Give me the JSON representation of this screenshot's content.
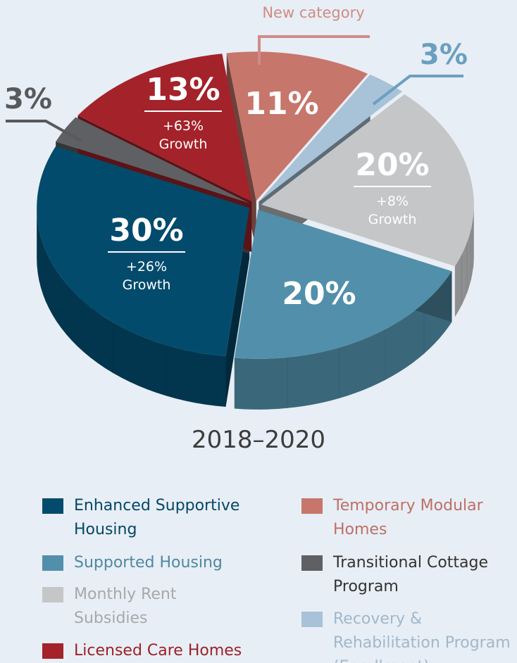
{
  "chart_data": {
    "type": "pie",
    "title": "2018–2020",
    "categories": [
      "Enhanced Supportive Housing",
      "Supported Housing",
      "Monthly Rent Subsidies",
      "Licensed Care Homes",
      "Temporary Modular Homes",
      "Transitional Cottage Program",
      "Recovery & Rehabilitation Program (Enrollment)"
    ],
    "values": [
      30,
      20,
      20,
      13,
      11,
      3,
      3
    ],
    "value_labels": [
      "30%",
      "20%",
      "20%",
      "13%",
      "11%",
      "3%",
      "3%"
    ],
    "notes": [
      "+26% Growth",
      null,
      "+8% Growth",
      "+63% Growth",
      "New category",
      null,
      null
    ],
    "colors": [
      "#034b6c",
      "#528faa",
      "#c5c6c8",
      "#a42229",
      "#c7766c",
      "#5f6063",
      "#a8c2d7"
    ],
    "legend": "bottom"
  }
}
